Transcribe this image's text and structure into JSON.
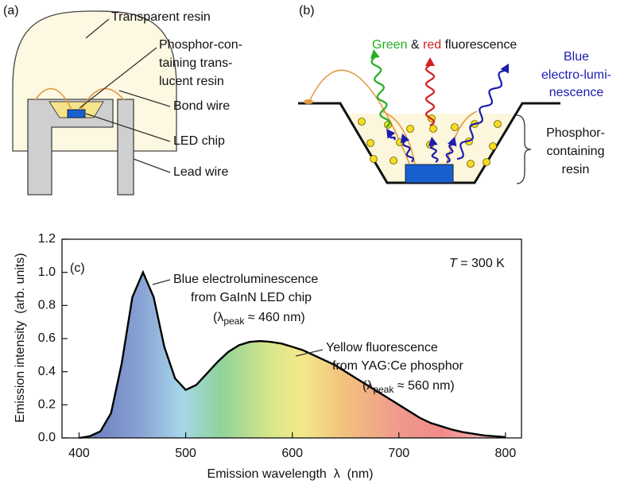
{
  "diagram_a": {
    "label": "(a)",
    "transparent_resin": "Transparent resin",
    "phosphor_resin": [
      "Phosphor-con-",
      "taining trans-",
      "lucent resin"
    ],
    "bond_wire": "Bond wire",
    "led_chip": "LED chip",
    "lead_wire": "Lead wire"
  },
  "diagram_b": {
    "label": "(b)",
    "fluorescence": [
      "Green",
      " & ",
      "red",
      " fluorescence"
    ],
    "blue": [
      "Blue",
      "electro-lumi-",
      "nescence"
    ],
    "resin": [
      "Phosphor-",
      "containing",
      "resin"
    ]
  },
  "chart_data": {
    "type": "area",
    "panel_label": "(c)",
    "x_label": "Emission wavelength  λ  (nm)",
    "y_label": "Emission intensity  (arb. units)",
    "x": [
      400,
      410,
      420,
      430,
      440,
      450,
      460,
      470,
      480,
      490,
      500,
      510,
      520,
      530,
      540,
      550,
      560,
      570,
      580,
      590,
      600,
      610,
      620,
      630,
      640,
      650,
      660,
      670,
      680,
      690,
      700,
      710,
      720,
      730,
      740,
      750,
      760,
      770,
      780,
      790,
      800
    ],
    "values": [
      0.0,
      0.01,
      0.04,
      0.15,
      0.45,
      0.85,
      1.0,
      0.85,
      0.55,
      0.36,
      0.29,
      0.32,
      0.39,
      0.46,
      0.52,
      0.56,
      0.58,
      0.585,
      0.58,
      0.57,
      0.55,
      0.53,
      0.5,
      0.47,
      0.44,
      0.4,
      0.36,
      0.32,
      0.28,
      0.24,
      0.2,
      0.16,
      0.12,
      0.09,
      0.07,
      0.05,
      0.035,
      0.025,
      0.015,
      0.01,
      0.005
    ],
    "color": "#000000",
    "xlim": [
      384,
      815
    ],
    "ylim": [
      0,
      1.2
    ],
    "xticks": [
      400,
      500,
      600,
      700,
      800
    ],
    "yticks": [
      {
        "value": 0,
        "label": "0.0"
      },
      0.2,
      0.4,
      0.6,
      0.8,
      {
        "value": 1,
        "label": "1.0"
      },
      1.2
    ],
    "annotations": [
      {
        "text": [
          "Blue electroluminescence",
          "from GaInN LED chip"
        ],
        "peak": [
          "(λ",
          "peak",
          " ≈ 460 nm)"
        ]
      },
      {
        "text": [
          "Yellow fluorescence",
          "from YAG:Ce phosphor"
        ],
        "peak": [
          "(λ",
          "peak",
          " ≈ 560 nm)"
        ]
      }
    ],
    "temperature": [
      "T",
      " = 300 K"
    ]
  }
}
